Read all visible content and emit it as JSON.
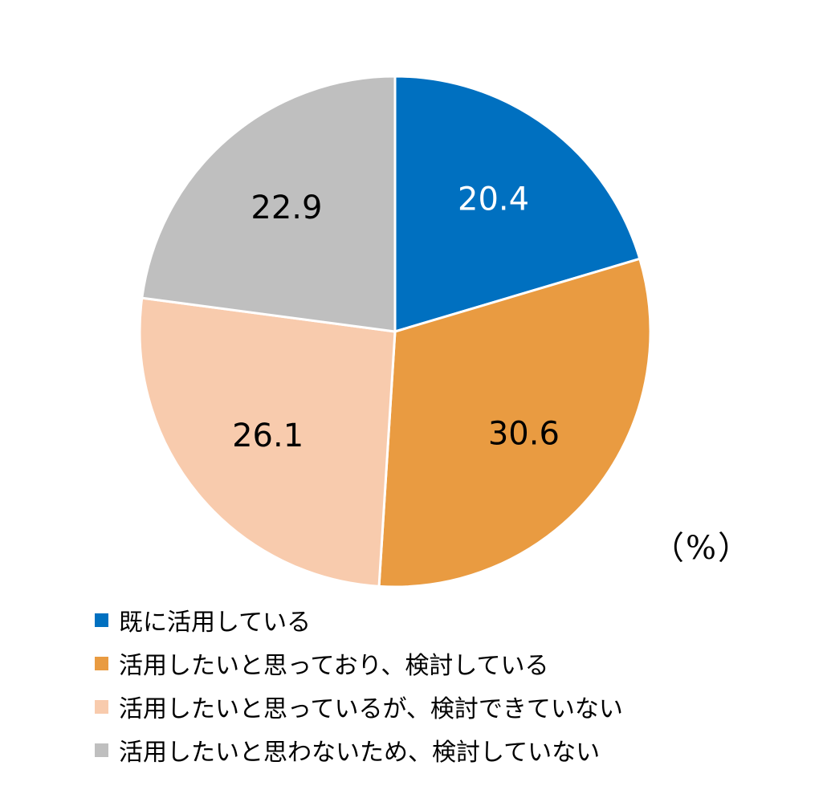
{
  "chart_data": {
    "type": "pie",
    "title": "",
    "unit_label": "（%）",
    "start_angle_deg": 0,
    "direction": "clockwise",
    "legend_position": "bottom-left",
    "slices": [
      {
        "label": "既に活用している",
        "value": 20.4,
        "color": "#0070C0",
        "label_color": "#FFFFFF"
      },
      {
        "label": "活用したいと思っており、検討している",
        "value": 30.6,
        "color": "#E99B41",
        "label_color": "#000000"
      },
      {
        "label": "活用したいと思っているが、検討できていない",
        "value": 26.1,
        "color": "#F8CBAD",
        "label_color": "#000000"
      },
      {
        "label": "活用したいと思わないため、検討していない",
        "value": 22.9,
        "color": "#BFBFBF",
        "label_color": "#000000"
      }
    ]
  }
}
